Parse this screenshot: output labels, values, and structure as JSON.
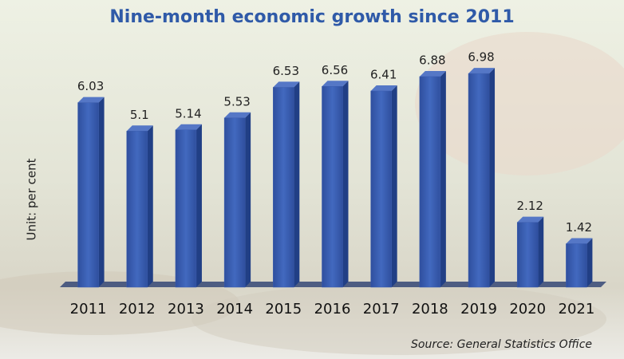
{
  "chart_data": {
    "type": "bar",
    "title": "Nine-month economic growth since 2011",
    "y_label": "Unit: per cent",
    "source": "Source: General Statistics Office",
    "categories": [
      "2011",
      "2012",
      "2013",
      "2014",
      "2015",
      "2016",
      "2017",
      "2018",
      "2019",
      "2020",
      "2021"
    ],
    "values": [
      6.03,
      5.1,
      5.14,
      5.53,
      6.53,
      6.56,
      6.41,
      6.88,
      6.98,
      2.12,
      1.42
    ],
    "color": "#3a5cae",
    "ylim": [
      0,
      8
    ]
  }
}
